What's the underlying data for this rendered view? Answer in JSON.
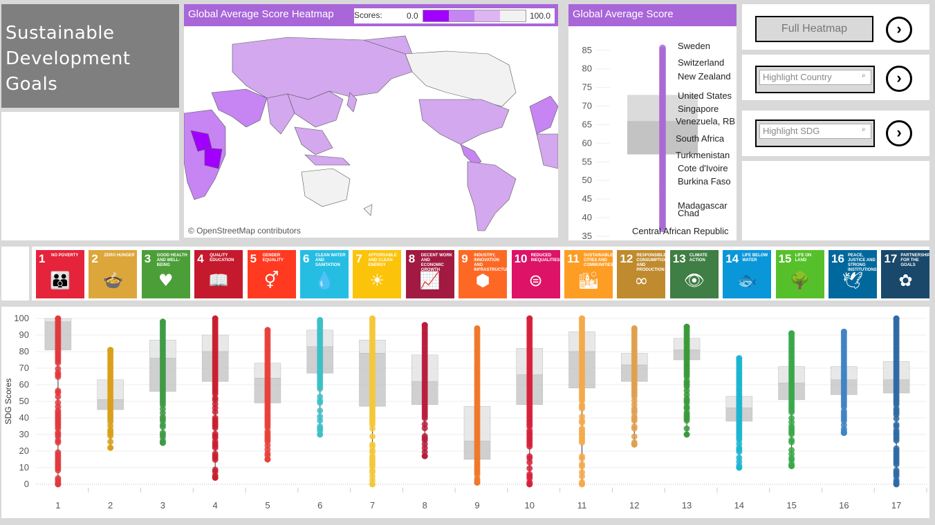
{
  "title": {
    "line1": "Sustainable",
    "line2": "Development",
    "line3": "Goals"
  },
  "map": {
    "header": "Global  Average Score Heatmap",
    "scores_label": "Scores:",
    "scale_min": "0.0",
    "scale_max": "100.0",
    "attribution": "© OpenStreetMap contributors"
  },
  "global_avg": {
    "header": "Global Average Score",
    "ticks": [
      "85",
      "80",
      "75",
      "70",
      "65",
      "60",
      "55",
      "50",
      "45",
      "40",
      "35"
    ],
    "countries": [
      "Sweden",
      "Switzerland",
      "New Zealand",
      "United States",
      "Singapore",
      "Venezuela, RB",
      "South Africa",
      "Turkmenistan",
      "Cote d'Ivoire",
      "Burkina Faso",
      "Madagascar",
      "Chad",
      "Central African Republic"
    ]
  },
  "controls": {
    "full_heatmap": "Full Heatmap",
    "highlight_country": "Highlight Country",
    "highlight_sdg": "Highlight SDG",
    "arrow": "›"
  },
  "sdgs": [
    {
      "num": "1",
      "label": "No poverty",
      "color": "#e5243b"
    },
    {
      "num": "2",
      "label": "Zero hunger",
      "color": "#dda63a"
    },
    {
      "num": "3",
      "label": "Good health and well-being",
      "color": "#4c9f38"
    },
    {
      "num": "4",
      "label": "Quality education",
      "color": "#c5192d"
    },
    {
      "num": "5",
      "label": "Gender equality",
      "color": "#ff3a21"
    },
    {
      "num": "6",
      "label": "Clean water and sanitation",
      "color": "#26bde2"
    },
    {
      "num": "7",
      "label": "Affordable and clean energy",
      "color": "#fcc30b"
    },
    {
      "num": "8",
      "label": "Decent work and economic growth",
      "color": "#a21942"
    },
    {
      "num": "9",
      "label": "Industry, innovation and infrastructure",
      "color": "#fd6925"
    },
    {
      "num": "10",
      "label": "Reduced inequalities",
      "color": "#dd1367"
    },
    {
      "num": "11",
      "label": "Sustainable cities and communities",
      "color": "#fd9d24"
    },
    {
      "num": "12",
      "label": "Responsible consumption and production",
      "color": "#bf8b2e"
    },
    {
      "num": "13",
      "label": "Climate action",
      "color": "#3f7e44"
    },
    {
      "num": "14",
      "label": "Life below water",
      "color": "#0a97d9"
    },
    {
      "num": "15",
      "label": "Life on land",
      "color": "#56c02b"
    },
    {
      "num": "16",
      "label": "Peace, justice and strong institutions",
      "color": "#00689d"
    },
    {
      "num": "17",
      "label": "Partnerships for the goals",
      "color": "#19486a"
    }
  ],
  "chart_data": {
    "type": "box",
    "ylabel": "SDG Scores",
    "ylim": [
      0,
      100
    ],
    "yticks": [
      0,
      10,
      20,
      30,
      40,
      50,
      60,
      70,
      80,
      90,
      100
    ],
    "categories": [
      "1",
      "2",
      "3",
      "4",
      "5",
      "6",
      "7",
      "8",
      "9",
      "10",
      "11",
      "12",
      "13",
      "14",
      "15",
      "16",
      "17"
    ],
    "series": [
      {
        "cat": "1",
        "color": "#e03a3e",
        "min": 0,
        "q1": 81,
        "median": 98,
        "q3": 100,
        "max": 100
      },
      {
        "cat": "2",
        "color": "#d9a018",
        "min": 22,
        "q1": 45,
        "median": 51,
        "q3": 63,
        "max": 81
      },
      {
        "cat": "3",
        "color": "#3f9a45",
        "min": 25,
        "q1": 56,
        "median": 76,
        "q3": 87,
        "max": 98
      },
      {
        "cat": "4",
        "color": "#c8202f",
        "min": 4,
        "q1": 62,
        "median": 80,
        "q3": 90,
        "max": 100
      },
      {
        "cat": "5",
        "color": "#e8413a",
        "min": 15,
        "q1": 49,
        "median": 64,
        "q3": 73,
        "max": 93
      },
      {
        "cat": "6",
        "color": "#3cc0c8",
        "min": 30,
        "q1": 67,
        "median": 83,
        "q3": 93,
        "max": 99
      },
      {
        "cat": "7",
        "color": "#f5c83a",
        "min": 0,
        "q1": 47,
        "median": 79,
        "q3": 87,
        "max": 100
      },
      {
        "cat": "8",
        "color": "#b81d3d",
        "min": 17,
        "q1": 48,
        "median": 62,
        "q3": 78,
        "max": 96
      },
      {
        "cat": "9",
        "color": "#f0782a",
        "min": 1,
        "q1": 15,
        "median": 26,
        "q3": 47,
        "max": 94
      },
      {
        "cat": "10",
        "color": "#d6213a",
        "min": 0,
        "q1": 48,
        "median": 66,
        "q3": 82,
        "max": 100
      },
      {
        "cat": "11",
        "color": "#f5a94a",
        "min": 0,
        "q1": 58,
        "median": 80,
        "q3": 92,
        "max": 100
      },
      {
        "cat": "12",
        "color": "#e0a050",
        "min": 24,
        "q1": 62,
        "median": 72,
        "q3": 79,
        "max": 94
      },
      {
        "cat": "13",
        "color": "#3a9a3a",
        "min": 30,
        "q1": 75,
        "median": 81,
        "q3": 88,
        "max": 95
      },
      {
        "cat": "14",
        "color": "#1bb5d2",
        "min": 10,
        "q1": 38,
        "median": 46,
        "q3": 53,
        "max": 76
      },
      {
        "cat": "15",
        "color": "#3aa84a",
        "min": 11,
        "q1": 51,
        "median": 61,
        "q3": 71,
        "max": 91
      },
      {
        "cat": "16",
        "color": "#3f84c4",
        "min": 31,
        "q1": 54,
        "median": 63,
        "q3": 71,
        "max": 92
      },
      {
        "cat": "17",
        "color": "#2e6aa5",
        "min": 0,
        "q1": 55,
        "median": 63,
        "q3": 74,
        "max": 100
      }
    ]
  },
  "gavg_chart": {
    "type": "box",
    "ylim": [
      35,
      87
    ],
    "min": 37,
    "q1": 57,
    "median": 66,
    "q3": 73,
    "max": 86
  }
}
